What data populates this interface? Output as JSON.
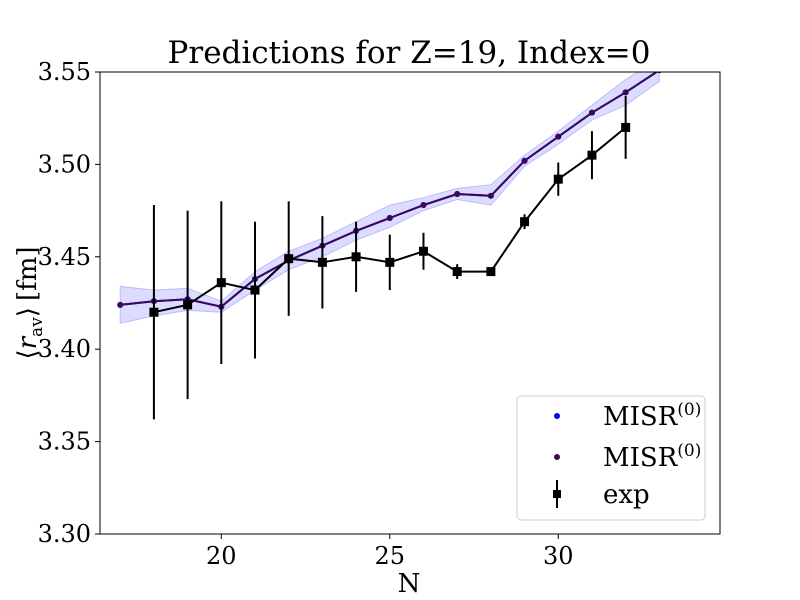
{
  "chart_data": {
    "type": "line",
    "title": "Predictions for Z=19, Index=0",
    "xlabel": "N",
    "ylabel_parts": {
      "bracket_open": "⟨",
      "var": "r",
      "sub": "av",
      "bracket_close": "⟩",
      "unit": "[fm]"
    },
    "xlim": [
      16.4,
      34.8
    ],
    "ylim": [
      3.3,
      3.55
    ],
    "xticks": [
      20,
      25,
      30
    ],
    "yticks": [
      3.3,
      3.35,
      3.4,
      3.45,
      3.5,
      3.55
    ],
    "ytick_labels": [
      "3.30",
      "3.35",
      "3.40",
      "3.45",
      "3.50",
      "3.55"
    ],
    "grid": false,
    "legend_position": "bottom-right",
    "series": [
      {
        "name": "MISR(0)",
        "legend_base": "MISR",
        "legend_sup": "(0)",
        "kind": "prediction-blue",
        "color": "#0000ee",
        "band_color": "#8c8cff",
        "x": [
          17,
          18,
          19,
          20,
          21,
          22,
          23,
          24,
          25,
          26,
          27,
          28,
          29,
          30,
          31,
          32,
          33
        ],
        "y": [
          3.424,
          3.426,
          3.427,
          3.423,
          3.438,
          3.448,
          3.456,
          3.464,
          3.471,
          3.478,
          3.484,
          3.483,
          3.502,
          3.515,
          3.528,
          3.539,
          3.551
        ],
        "band_lower": [
          3.414,
          3.418,
          3.421,
          3.42,
          3.432,
          3.443,
          3.45,
          3.459,
          3.466,
          3.475,
          3.481,
          3.478,
          3.499,
          3.511,
          3.524,
          3.532,
          3.545
        ],
        "band_upper": [
          3.434,
          3.432,
          3.433,
          3.426,
          3.442,
          3.453,
          3.46,
          3.469,
          3.478,
          3.482,
          3.487,
          3.489,
          3.505,
          3.518,
          3.532,
          3.546,
          3.557
        ]
      },
      {
        "name": "MISR(0)",
        "legend_base": "MISR",
        "legend_sup": "(0)",
        "kind": "prediction-purple",
        "color": "#3d0a5a",
        "x": [
          17,
          18,
          19,
          20,
          21,
          22,
          23,
          24,
          25,
          26,
          27,
          28,
          29,
          30,
          31,
          32,
          33
        ],
        "y": [
          3.424,
          3.426,
          3.427,
          3.423,
          3.438,
          3.448,
          3.456,
          3.464,
          3.471,
          3.478,
          3.484,
          3.483,
          3.502,
          3.515,
          3.528,
          3.539,
          3.551
        ]
      },
      {
        "name": "exp",
        "legend_base": "exp",
        "legend_sup": "",
        "kind": "experiment",
        "color": "#000000",
        "x": [
          18,
          19,
          20,
          21,
          22,
          23,
          24,
          25,
          26,
          27,
          28,
          29,
          30,
          31,
          32
        ],
        "y": [
          3.42,
          3.424,
          3.436,
          3.432,
          3.449,
          3.447,
          3.45,
          3.447,
          3.453,
          3.442,
          3.442,
          3.469,
          3.492,
          3.505,
          3.52
        ],
        "err": [
          0.058,
          0.051,
          0.044,
          0.037,
          0.031,
          0.025,
          0.019,
          0.015,
          0.01,
          0.004,
          0.002,
          0.004,
          0.009,
          0.013,
          0.017
        ]
      }
    ]
  }
}
